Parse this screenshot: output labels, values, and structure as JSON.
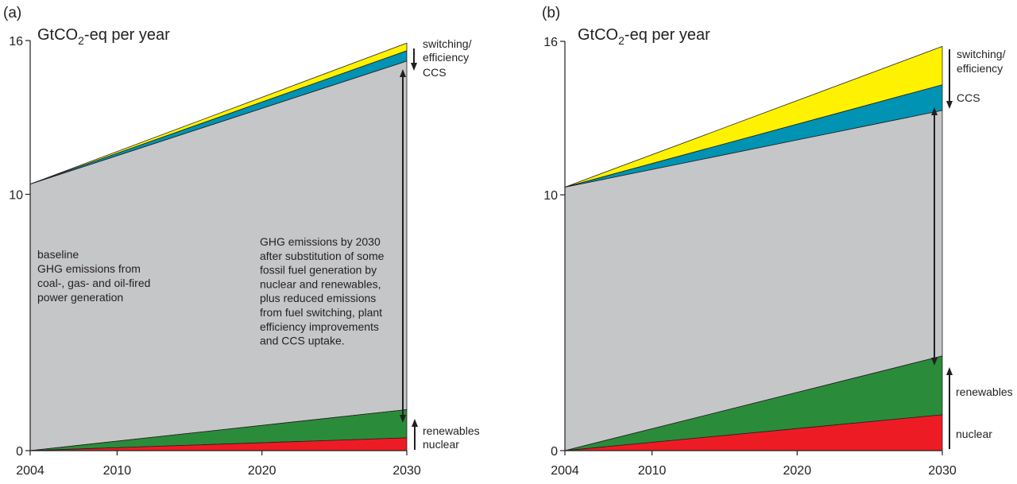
{
  "colors": {
    "baseline": "#c5c6c8",
    "switching": "#fff200",
    "ccs": "#0093b4",
    "renewables": "#2a8c3a",
    "nuclear": "#ed1c24",
    "ink": "#231f20"
  },
  "chart_data": [
    {
      "type": "area",
      "panel_label": "(a)",
      "title": "GtCO2-eq per year",
      "x": [
        2004,
        2030
      ],
      "x_ticks": [
        2004,
        2010,
        2020,
        2030
      ],
      "y_ticks": [
        0,
        10,
        16
      ],
      "ylim": [
        0,
        16
      ],
      "xlim": [
        2004,
        2030
      ],
      "series": [
        {
          "name": "nuclear",
          "values": [
            0,
            0.5
          ]
        },
        {
          "name": "renewables",
          "values": [
            0,
            1.1
          ]
        },
        {
          "name": "CCS",
          "values": [
            0,
            0.4
          ]
        },
        {
          "name": "switching/ efficiency",
          "values": [
            0,
            0.3
          ]
        }
      ],
      "baseline_total": [
        10.4,
        15.9
      ],
      "annotations": {
        "baseline_text": [
          "baseline",
          "GHG emissions from",
          "coal-, gas- and oil-fired",
          "power generation"
        ],
        "after_text": [
          "GHG emissions by 2030",
          "after substitution of some",
          "fossil fuel generation by",
          "nuclear and renewables,",
          "plus reduced emissions",
          "from fuel switching, plant",
          "efficiency improvements",
          "and CCS uptake."
        ],
        "switching_label": [
          "switching/",
          "efficiency"
        ],
        "ccs_label": "CCS",
        "renewables_label": "renewables",
        "nuclear_label": "nuclear"
      }
    },
    {
      "type": "area",
      "panel_label": "(b)",
      "title": "GtCO2-eq per year",
      "x": [
        2004,
        2030
      ],
      "x_ticks": [
        2004,
        2010,
        2020,
        2030
      ],
      "y_ticks": [
        0,
        10,
        16
      ],
      "ylim": [
        0,
        16
      ],
      "xlim": [
        2004,
        2030
      ],
      "series": [
        {
          "name": "nuclear",
          "values": [
            0,
            1.4
          ]
        },
        {
          "name": "renewables",
          "values": [
            0,
            2.3
          ]
        },
        {
          "name": "CCS",
          "values": [
            0,
            1.0
          ]
        },
        {
          "name": "switching/ efficiency",
          "values": [
            0,
            1.5
          ]
        }
      ],
      "baseline_total": [
        10.3,
        15.8
      ],
      "annotations": {
        "switching_label": [
          "switching/",
          "efficiency"
        ],
        "ccs_label": "CCS",
        "renewables_label": "renewables",
        "nuclear_label": "nuclear"
      }
    }
  ]
}
